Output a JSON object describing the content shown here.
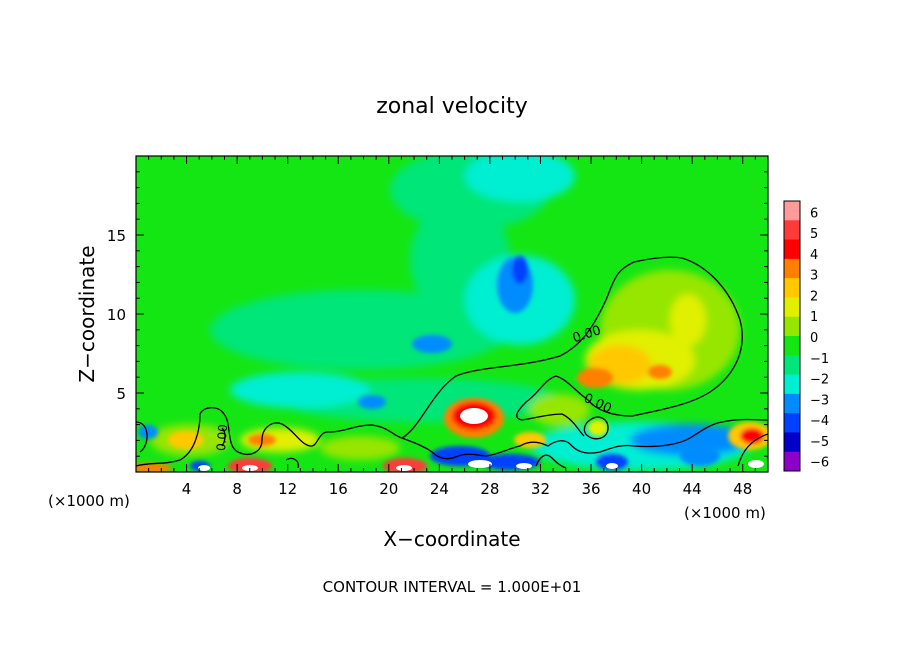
{
  "chart_data": {
    "type": "heatmap",
    "title": "zonal velocity",
    "xlabel": "X−coordinate",
    "ylabel": "Z−coordinate",
    "x_unit": "(×1000 m)",
    "xlim": [
      0,
      50
    ],
    "ylim": [
      0,
      20
    ],
    "x_ticks": [
      4,
      8,
      12,
      16,
      20,
      24,
      28,
      32,
      36,
      40,
      44,
      48
    ],
    "x_tick_labels": [
      "4",
      "8",
      "12",
      "16",
      "20",
      "24",
      "28",
      "32",
      "36",
      "40",
      "44",
      "48"
    ],
    "y_ticks": [
      5,
      10,
      15
    ],
    "y_tick_labels": [
      "5",
      "10",
      "15"
    ],
    "contour_label": "0.00",
    "footer": "CONTOUR INTERVAL = 1.000E+01",
    "colorbar": {
      "levels": [
        6,
        5,
        4,
        3,
        2,
        1,
        0,
        -1,
        -2,
        -3,
        -4,
        -5,
        -6
      ],
      "labels": [
        "6",
        "5",
        "4",
        "3",
        "2",
        "1",
        "0",
        "−1",
        "−2",
        "−3",
        "−4",
        "−5",
        "−6"
      ],
      "colors": [
        "#ff9a9a",
        "#ff3a3a",
        "#ff0000",
        "#ff7f00",
        "#ffc800",
        "#e1f000",
        "#96e600",
        "#14e614",
        "#00e678",
        "#00eed2",
        "#008cff",
        "#0040ff",
        "#0000c8",
        "#8c00c8"
      ]
    },
    "features": [
      {
        "x": 26,
        "z": 3.8,
        "value": 6
      },
      {
        "x": 38,
        "z": 6.5,
        "value": 3
      },
      {
        "x": 49,
        "z": 2.2,
        "value": 4
      },
      {
        "x": 30,
        "z": 12,
        "value": -3
      },
      {
        "x": 23,
        "z": 8,
        "value": -3
      },
      {
        "x": 18.5,
        "z": 4.5,
        "value": -3
      },
      {
        "x": 30,
        "z": 19,
        "value": -2
      }
    ]
  }
}
